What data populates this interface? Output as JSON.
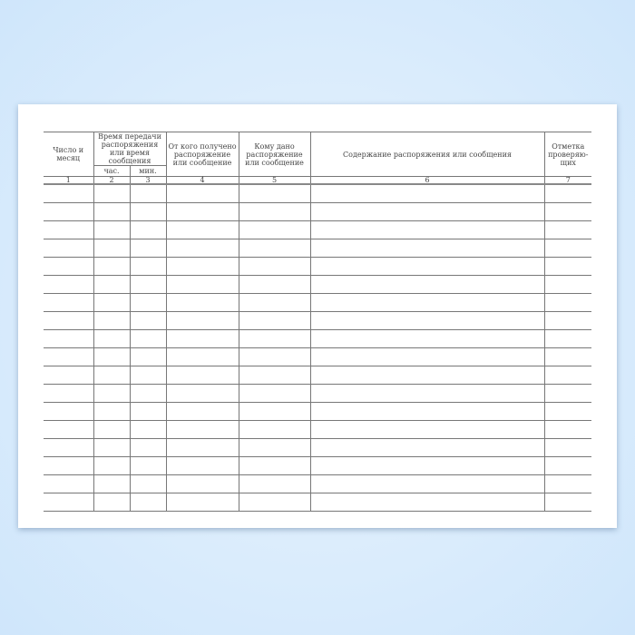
{
  "headers": {
    "date": "Число и месяц",
    "time_group": "Время передачи распоряжения или время сообщения",
    "hours": "час.",
    "minutes": "мин.",
    "from_whom": "От кого получено распоряжение или сообщение",
    "to_whom": "Кому дано распоряжение или сообщение",
    "content": "Содержание распоряжения или сообщения",
    "inspectors_mark": "Отметка проверяю-щих"
  },
  "column_numbers": [
    "1",
    "2",
    "3",
    "4",
    "5",
    "6",
    "7"
  ],
  "empty_rows": 18
}
